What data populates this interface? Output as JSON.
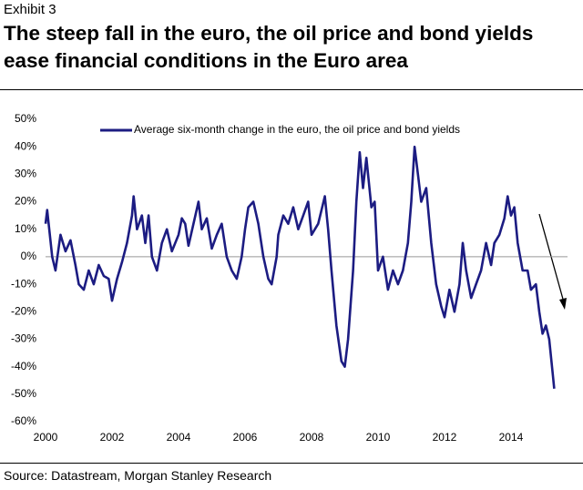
{
  "chart_data": {
    "type": "line",
    "supertitle": "Exhibit 3",
    "title": "The steep fall in the euro, the oil price and bond yields ease financial conditions in the Euro area",
    "source": "Source: Datastream, Morgan Stanley Research",
    "x": [
      2000.0,
      2000.05,
      2000.2,
      2000.3,
      2000.45,
      2000.6,
      2000.75,
      2000.9,
      2001.0,
      2001.15,
      2001.3,
      2001.45,
      2001.6,
      2001.75,
      2001.9,
      2002.0,
      2002.15,
      2002.3,
      2002.45,
      2002.6,
      2002.65,
      2002.75,
      2002.9,
      2003.0,
      2003.1,
      2003.2,
      2003.35,
      2003.5,
      2003.65,
      2003.8,
      2004.0,
      2004.1,
      2004.2,
      2004.3,
      2004.45,
      2004.6,
      2004.7,
      2004.85,
      2005.0,
      2005.15,
      2005.3,
      2005.45,
      2005.6,
      2005.75,
      2005.9,
      2006.0,
      2006.1,
      2006.25,
      2006.4,
      2006.55,
      2006.7,
      2006.8,
      2006.95,
      2007.0,
      2007.15,
      2007.3,
      2007.45,
      2007.6,
      2007.75,
      2007.9,
      2008.0,
      2008.2,
      2008.4,
      2008.5,
      2008.6,
      2008.75,
      2008.9,
      2009.0,
      2009.1,
      2009.25,
      2009.35,
      2009.45,
      2009.55,
      2009.65,
      2009.8,
      2009.9,
      2010.0,
      2010.15,
      2010.3,
      2010.45,
      2010.6,
      2010.75,
      2010.9,
      2011.0,
      2011.1,
      2011.2,
      2011.3,
      2011.45,
      2011.6,
      2011.75,
      2011.9,
      2012.0,
      2012.15,
      2012.3,
      2012.45,
      2012.55,
      2012.65,
      2012.8,
      2012.95,
      2013.1,
      2013.25,
      2013.4,
      2013.5,
      2013.65,
      2013.8,
      2013.9,
      2014.0,
      2014.1,
      2014.2,
      2014.35,
      2014.5,
      2014.6,
      2014.75,
      2014.85,
      2014.95,
      2015.05,
      2015.15,
      2015.25,
      2015.3
    ],
    "series": [
      {
        "name": "Average six-month change in the euro, the oil price and bond yields",
        "color": "#1c1c82",
        "values": [
          12,
          17,
          0,
          -5,
          8,
          2,
          6,
          -3,
          -10,
          -12,
          -5,
          -10,
          -3,
          -7,
          -8,
          -16,
          -8,
          -2,
          5,
          15,
          22,
          10,
          15,
          5,
          15,
          0,
          -5,
          5,
          10,
          2,
          8,
          14,
          12,
          4,
          12,
          20,
          10,
          14,
          3,
          8,
          12,
          0,
          -5,
          -8,
          0,
          10,
          18,
          20,
          12,
          0,
          -8,
          -10,
          0,
          8,
          15,
          12,
          18,
          10,
          15,
          20,
          8,
          12,
          22,
          10,
          -5,
          -25,
          -38,
          -40,
          -30,
          -5,
          20,
          38,
          25,
          36,
          18,
          20,
          -5,
          0,
          -12,
          -5,
          -10,
          -5,
          5,
          20,
          40,
          30,
          20,
          25,
          5,
          -10,
          -18,
          -22,
          -12,
          -20,
          -10,
          5,
          -5,
          -15,
          -10,
          -5,
          5,
          -3,
          5,
          8,
          14,
          22,
          15,
          18,
          5,
          -5,
          -5,
          -12,
          -10,
          -20,
          -28,
          -25,
          -30,
          -42,
          -48
        ]
      }
    ],
    "xlim": [
      2000,
      2015.7
    ],
    "xticks": [
      2000,
      2002,
      2004,
      2006,
      2008,
      2010,
      2012,
      2014
    ],
    "ylim": [
      -60,
      50
    ],
    "yticks": [
      {
        "value": -60,
        "label": "-60%"
      },
      {
        "value": -50,
        "label": "-50%"
      },
      {
        "value": -40,
        "label": "-40%"
      },
      {
        "value": -30,
        "label": "-30%"
      },
      {
        "value": -20,
        "label": "-20%"
      },
      {
        "value": -10,
        "label": "-10%"
      },
      {
        "value": 0,
        "label": "0%"
      },
      {
        "value": 10,
        "label": "10%"
      },
      {
        "value": 20,
        "label": "20%"
      },
      {
        "value": 30,
        "label": "30%"
      },
      {
        "value": 40,
        "label": "40%"
      },
      {
        "value": 50,
        "label": "50%"
      }
    ]
  }
}
